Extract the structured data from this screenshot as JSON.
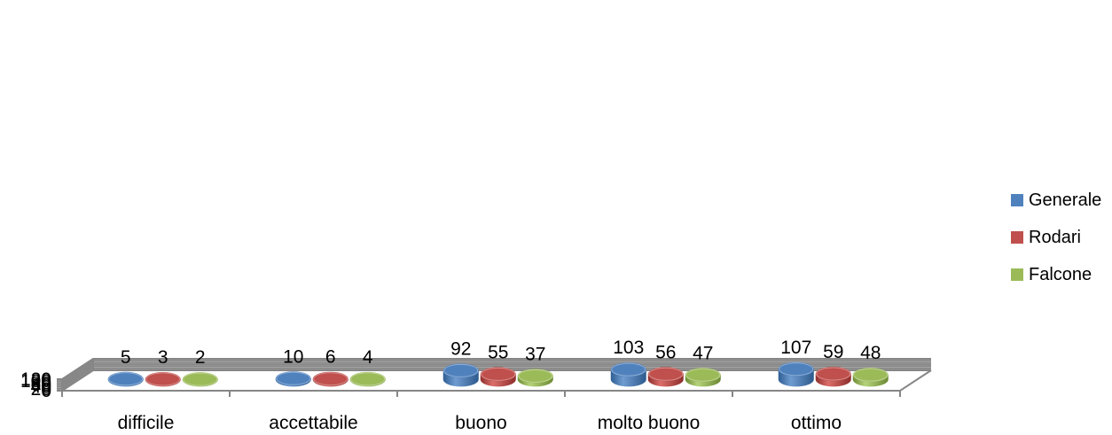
{
  "chart_data": {
    "type": "bar",
    "categories": [
      "difficile",
      "accettabile",
      "buono",
      "molto buono",
      "ottimo"
    ],
    "series": [
      {
        "name": "Generale",
        "color": "#4F81BD",
        "values": [
          5,
          10,
          92,
          103,
          107
        ]
      },
      {
        "name": "Rodari",
        "color": "#C0504D",
        "values": [
          3,
          6,
          55,
          56,
          59
        ]
      },
      {
        "name": "Falcone",
        "color": "#9BBB59",
        "values": [
          2,
          4,
          37,
          47,
          48
        ]
      }
    ],
    "ylim": [
      0,
      120
    ],
    "yticks": [
      0,
      20,
      40,
      60,
      80,
      100,
      120
    ],
    "grid": true,
    "legend": "right",
    "data_labels": true,
    "style": "3d-cylinder"
  }
}
